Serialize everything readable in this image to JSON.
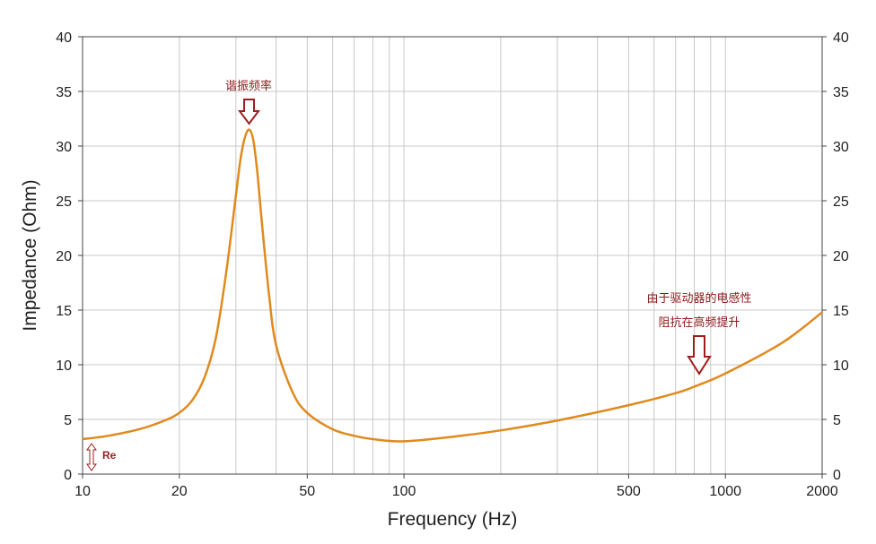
{
  "chart_data": {
    "type": "line",
    "x_scale": "log",
    "xlim": [
      10,
      2000
    ],
    "ylim": [
      0,
      40
    ],
    "xlabel": "Frequency (Hz)",
    "ylabel": "Impedance (Ohm)",
    "x_ticks": [
      10,
      20,
      50,
      100,
      500,
      1000,
      2000
    ],
    "x_tick_labels": [
      "10",
      "20",
      "50",
      "100",
      "500",
      "1000",
      "2000"
    ],
    "y_ticks": [
      0,
      5,
      10,
      15,
      20,
      25,
      30,
      35,
      40
    ],
    "y_tick_labels": [
      "0",
      "5",
      "10",
      "15",
      "20",
      "25",
      "30",
      "35",
      "40"
    ],
    "grid": true,
    "line_color": "#e08a1e",
    "series": [
      {
        "x": [
          10,
          12,
          15,
          18,
          20,
          22,
          24,
          26,
          28,
          30,
          31,
          32,
          33,
          34,
          35,
          36,
          38,
          40,
          45,
          50,
          60,
          70,
          80,
          100,
          150,
          200,
          300,
          500,
          700,
          800,
          1000,
          1500,
          2000
        ],
        "y": [
          3.2,
          3.5,
          4.1,
          4.9,
          5.6,
          6.8,
          8.9,
          12.5,
          18.5,
          25.5,
          28.8,
          30.8,
          31.5,
          30.5,
          27.5,
          23.5,
          16.5,
          11.8,
          7.5,
          5.6,
          4.1,
          3.5,
          3.2,
          3.0,
          3.5,
          4.0,
          4.9,
          6.3,
          7.4,
          8.0,
          9.2,
          12.0,
          14.8
        ]
      }
    ],
    "annotations": [
      {
        "text": "谐振频率",
        "x": 33,
        "y": 31.5
      },
      {
        "text": "由于驱动器的电感性",
        "x": 800,
        "y": 8.5
      },
      {
        "text": "阻抗在高频提升",
        "x": 800,
        "y": 8.5
      },
      {
        "text": "Re",
        "x": 10,
        "y": 3.2
      }
    ],
    "annotation_color": "#a01d1d"
  }
}
